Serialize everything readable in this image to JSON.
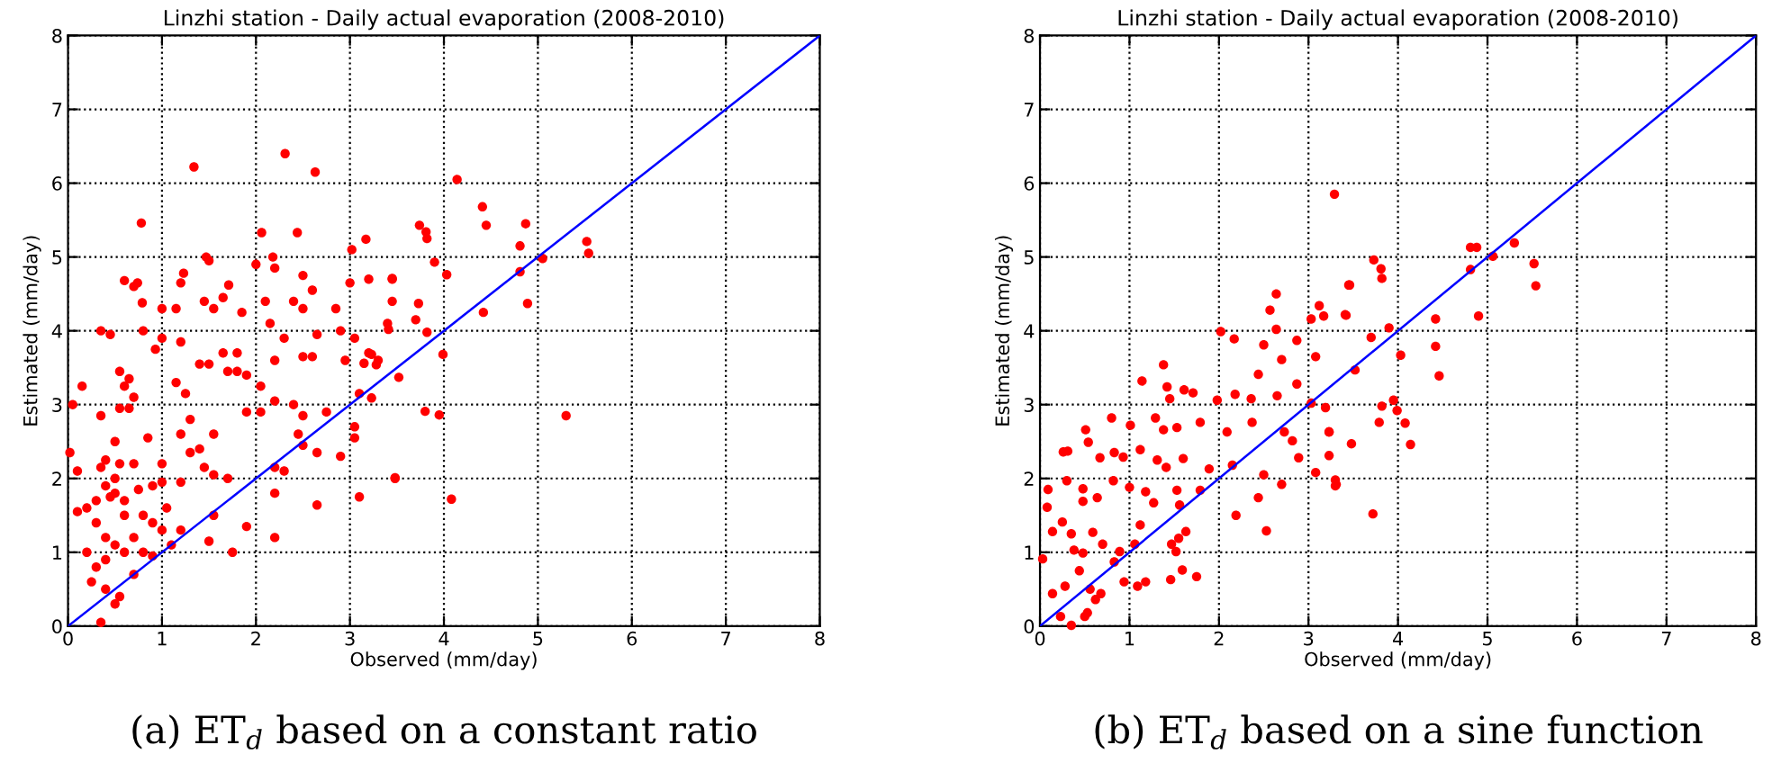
{
  "chart_data": [
    {
      "type": "scatter",
      "title": "Linzhi station - Daily actual evaporation (2008-2010)",
      "xlabel": "Observed (mm/day)",
      "ylabel": "Estimated (mm/day)",
      "xlim": [
        0,
        8
      ],
      "ylim": [
        0,
        8
      ],
      "xticks": [
        0,
        1,
        2,
        3,
        4,
        5,
        6,
        7,
        8
      ],
      "yticks": [
        0,
        1,
        2,
        3,
        4,
        5,
        6,
        7,
        8
      ],
      "grid": true,
      "annotations": [
        "(a) ET$_{d}$ based on a constant ratio"
      ],
      "series": [
        {
          "marker": "circle",
          "color": "#ff0000",
          "x": [
            2.31,
            1.34,
            2.63,
            0.78,
            2.06,
            2.44,
            3.17,
            3.02,
            1.47,
            1.5,
            2.18,
            2.0,
            2.2,
            1.23,
            0.74,
            0.6,
            0.7,
            1.2,
            1.71,
            3.45,
            3.2,
            2.5,
            2.6,
            0.79,
            1.0,
            1.15,
            1.45,
            1.55,
            1.65,
            2.1,
            2.4,
            2.5,
            2.85,
            3.0,
            3.45,
            3.4,
            1.85,
            2.15,
            2.3,
            2.65,
            2.9,
            3.05,
            0.35,
            0.45,
            0.8,
            1.0,
            0.93,
            1.2,
            1.65,
            1.8,
            1.4,
            1.5,
            1.7,
            1.8,
            1.9,
            2.05,
            1.15,
            1.25,
            2.2,
            2.5,
            2.6,
            2.95,
            3.3,
            3.2,
            3.1,
            0.55,
            0.65,
            0.6,
            0.15,
            0.05,
            0.35,
            0.55,
            0.7,
            0.65,
            1.3,
            1.2,
            1.55,
            1.9,
            2.05,
            2.2,
            2.4,
            2.5,
            2.75,
            2.45,
            2.5,
            2.65,
            2.9,
            3.05,
            3.05,
            0.02,
            0.1,
            0.5,
            0.4,
            0.55,
            0.7,
            0.85,
            1.0,
            1.3,
            1.4,
            1.45,
            1.55,
            1.7,
            1.0,
            1.2,
            2.2,
            2.3,
            3.48,
            2.65,
            3.1,
            2.2,
            2.2,
            1.5,
            1.75,
            1.9,
            1.55,
            0.2,
            0.3,
            0.4,
            0.5,
            0.6,
            0.3,
            0.4,
            0.5,
            0.6,
            0.7,
            0.8,
            0.9,
            1.0,
            0.4,
            0.3,
            0.2,
            0.25,
            0.4,
            0.5,
            0.55,
            0.35,
            0.1,
            0.7,
            0.8,
            0.9,
            1.1,
            1.2,
            1.05,
            0.6,
            0.5,
            0.35,
            0.45,
            0.75,
            0.9,
            4.14,
            4.41,
            4.45,
            4.87,
            3.74,
            3.81,
            3.82,
            4.81,
            5.52,
            5.54,
            5.05,
            3.9,
            4.03,
            3.45,
            4.81,
            3.73,
            4.89,
            4.42,
            3.7,
            3.41,
            3.82,
            3.99,
            3.23,
            3.15,
            3.28,
            3.52,
            3.23,
            3.8,
            3.95,
            5.3,
            3.48,
            4.08
          ],
          "values": [
            6.4,
            6.22,
            6.15,
            5.46,
            5.33,
            5.33,
            5.24,
            5.1,
            5.0,
            4.95,
            5.0,
            4.9,
            4.85,
            4.78,
            4.65,
            4.68,
            4.6,
            4.65,
            4.62,
            4.7,
            4.7,
            4.75,
            4.55,
            4.38,
            4.3,
            4.3,
            4.4,
            4.3,
            4.45,
            4.4,
            4.4,
            4.3,
            4.3,
            4.65,
            4.4,
            4.1,
            4.25,
            4.1,
            3.9,
            3.95,
            4.0,
            3.9,
            4.0,
            3.95,
            4.0,
            3.9,
            3.75,
            3.85,
            3.7,
            3.7,
            3.55,
            3.55,
            3.45,
            3.45,
            3.4,
            3.25,
            3.3,
            3.15,
            3.6,
            3.65,
            3.65,
            3.6,
            3.6,
            3.7,
            3.15,
            3.45,
            3.35,
            3.25,
            3.25,
            3.0,
            2.85,
            2.95,
            3.1,
            2.95,
            2.8,
            2.6,
            2.6,
            2.9,
            2.9,
            3.05,
            3.0,
            2.85,
            2.9,
            2.6,
            2.45,
            2.35,
            2.3,
            2.55,
            2.7,
            2.35,
            2.1,
            2.5,
            2.25,
            2.2,
            2.2,
            2.55,
            2.2,
            2.35,
            2.4,
            2.15,
            2.05,
            2.0,
            1.95,
            1.95,
            2.15,
            2.1,
            2.01,
            1.64,
            1.75,
            1.8,
            1.2,
            1.15,
            1.0,
            1.35,
            1.5,
            1.6,
            1.7,
            1.9,
            1.8,
            1.7,
            1.4,
            1.2,
            1.1,
            1.0,
            1.2,
            1.5,
            1.4,
            1.3,
            0.9,
            0.8,
            1.0,
            0.6,
            0.5,
            0.3,
            0.4,
            0.05,
            1.55,
            0.7,
            1.0,
            0.95,
            1.1,
            1.3,
            1.6,
            1.5,
            2.0,
            2.15,
            1.75,
            1.85,
            1.9,
            6.05,
            5.68,
            5.43,
            5.45,
            5.43,
            5.34,
            5.25,
            5.15,
            5.21,
            5.05,
            4.98,
            4.93,
            4.76,
            4.71,
            4.8,
            4.37,
            4.37,
            4.25,
            4.15,
            4.02,
            3.98,
            3.68,
            3.68,
            3.56,
            3.54,
            3.37,
            3.09,
            2.91,
            2.86,
            2.85,
            2.0,
            1.72
          ]
        },
        {
          "type": "line",
          "color": "#0000ff",
          "x": [
            0,
            8
          ],
          "values": [
            0,
            8
          ]
        }
      ]
    },
    {
      "type": "scatter",
      "title": "Linzhi station - Daily actual evaporation (2008-2010)",
      "xlabel": "Observed (mm/day)",
      "ylabel": "Estimated (mm/day)",
      "xlim": [
        0,
        8
      ],
      "ylim": [
        0,
        8
      ],
      "xticks": [
        0,
        1,
        2,
        3,
        4,
        5,
        6,
        7,
        8
      ],
      "yticks": [
        0,
        1,
        2,
        3,
        4,
        5,
        6,
        7,
        8
      ],
      "grid": true,
      "annotations": [
        "(b) ET$_{d}$ based on a sine function"
      ],
      "series": [
        {
          "marker": "circle",
          "color": "#ff0000",
          "x": [
            3.29,
            3.46,
            2.64,
            2.57,
            3.12,
            3.42,
            3.03,
            2.02,
            2.17,
            2.64,
            2.5,
            2.87,
            3.08,
            1.38,
            2.44,
            2.7,
            1.14,
            1.42,
            1.61,
            1.71,
            1.45,
            1.98,
            2.18,
            2.36,
            2.87,
            3.03,
            2.65,
            0.8,
            1.01,
            1.29,
            1.38,
            1.53,
            1.79,
            2.09,
            2.37,
            2.73,
            2.82,
            3.23,
            0.51,
            0.54,
            0.26,
            0.31,
            0.67,
            0.83,
            0.93,
            1.12,
            1.31,
            1.41,
            1.6,
            1.89,
            2.15,
            2.5,
            2.89,
            3.08,
            3.31,
            0.09,
            0.08,
            0.3,
            0.48,
            0.48,
            0.64,
            0.82,
            1.0,
            1.18,
            1.27,
            1.53,
            1.56,
            1.79,
            2.19,
            2.44,
            2.53,
            2.7,
            0.14,
            0.25,
            0.35,
            0.38,
            0.48,
            0.44,
            0.28,
            0.03,
            0.59,
            0.7,
            0.83,
            0.89,
            1.06,
            1.12,
            1.47,
            1.55,
            1.63,
            1.52,
            1.59,
            1.75,
            1.46,
            1.18,
            1.09,
            0.56,
            0.68,
            0.23,
            0.35,
            0.5,
            0.53,
            0.62,
            0.14,
            0.94,
            4.81,
            4.88,
            5.3,
            5.06,
            4.81,
            5.52,
            5.54,
            3.73,
            3.81,
            3.82,
            3.45,
            3.41,
            4.9,
            4.42,
            3.9,
            3.7,
            3.17,
            4.42,
            4.03,
            4.46,
            3.52,
            3.19,
            3.95,
            3.99,
            3.82,
            3.79,
            4.08,
            4.14,
            3.48,
            3.23,
            3.23,
            3.3,
            3.3,
            3.72
          ],
          "values": [
            5.85,
            4.62,
            4.5,
            4.28,
            4.34,
            4.21,
            4.16,
            3.99,
            3.89,
            4.02,
            3.81,
            3.87,
            3.65,
            3.54,
            3.41,
            3.61,
            3.32,
            3.24,
            3.2,
            3.16,
            3.08,
            3.06,
            3.14,
            3.08,
            3.28,
            3.02,
            3.12,
            2.82,
            2.72,
            2.82,
            2.66,
            2.69,
            2.76,
            2.63,
            2.76,
            2.63,
            2.51,
            2.63,
            2.66,
            2.49,
            2.36,
            2.37,
            2.28,
            2.35,
            2.29,
            2.39,
            2.25,
            2.15,
            2.27,
            2.13,
            2.18,
            2.05,
            2.28,
            2.08,
            1.92,
            1.85,
            1.61,
            1.97,
            1.86,
            1.69,
            1.74,
            1.97,
            1.88,
            1.82,
            1.67,
            1.84,
            1.64,
            1.84,
            1.5,
            1.74,
            1.29,
            1.92,
            1.28,
            1.41,
            1.25,
            1.03,
            0.99,
            0.75,
            0.54,
            0.91,
            1.27,
            1.11,
            0.87,
            1.01,
            1.11,
            1.37,
            1.11,
            1.19,
            1.28,
            1.01,
            0.76,
            0.67,
            0.63,
            0.6,
            0.54,
            0.5,
            0.44,
            0.13,
            0.01,
            0.13,
            0.18,
            0.36,
            0.44,
            0.6,
            5.13,
            5.13,
            5.19,
            5.01,
            4.83,
            4.91,
            4.61,
            4.96,
            4.84,
            4.71,
            4.62,
            4.22,
            4.2,
            4.16,
            4.04,
            3.91,
            4.2,
            3.79,
            3.67,
            3.39,
            3.47,
            2.96,
            3.06,
            2.92,
            2.98,
            2.76,
            2.75,
            2.46,
            2.47,
            2.63,
            2.31,
            1.98,
            1.9,
            1.52
          ]
        },
        {
          "type": "line",
          "color": "#0000ff",
          "x": [
            0,
            8
          ],
          "values": [
            0,
            8
          ]
        }
      ]
    }
  ]
}
